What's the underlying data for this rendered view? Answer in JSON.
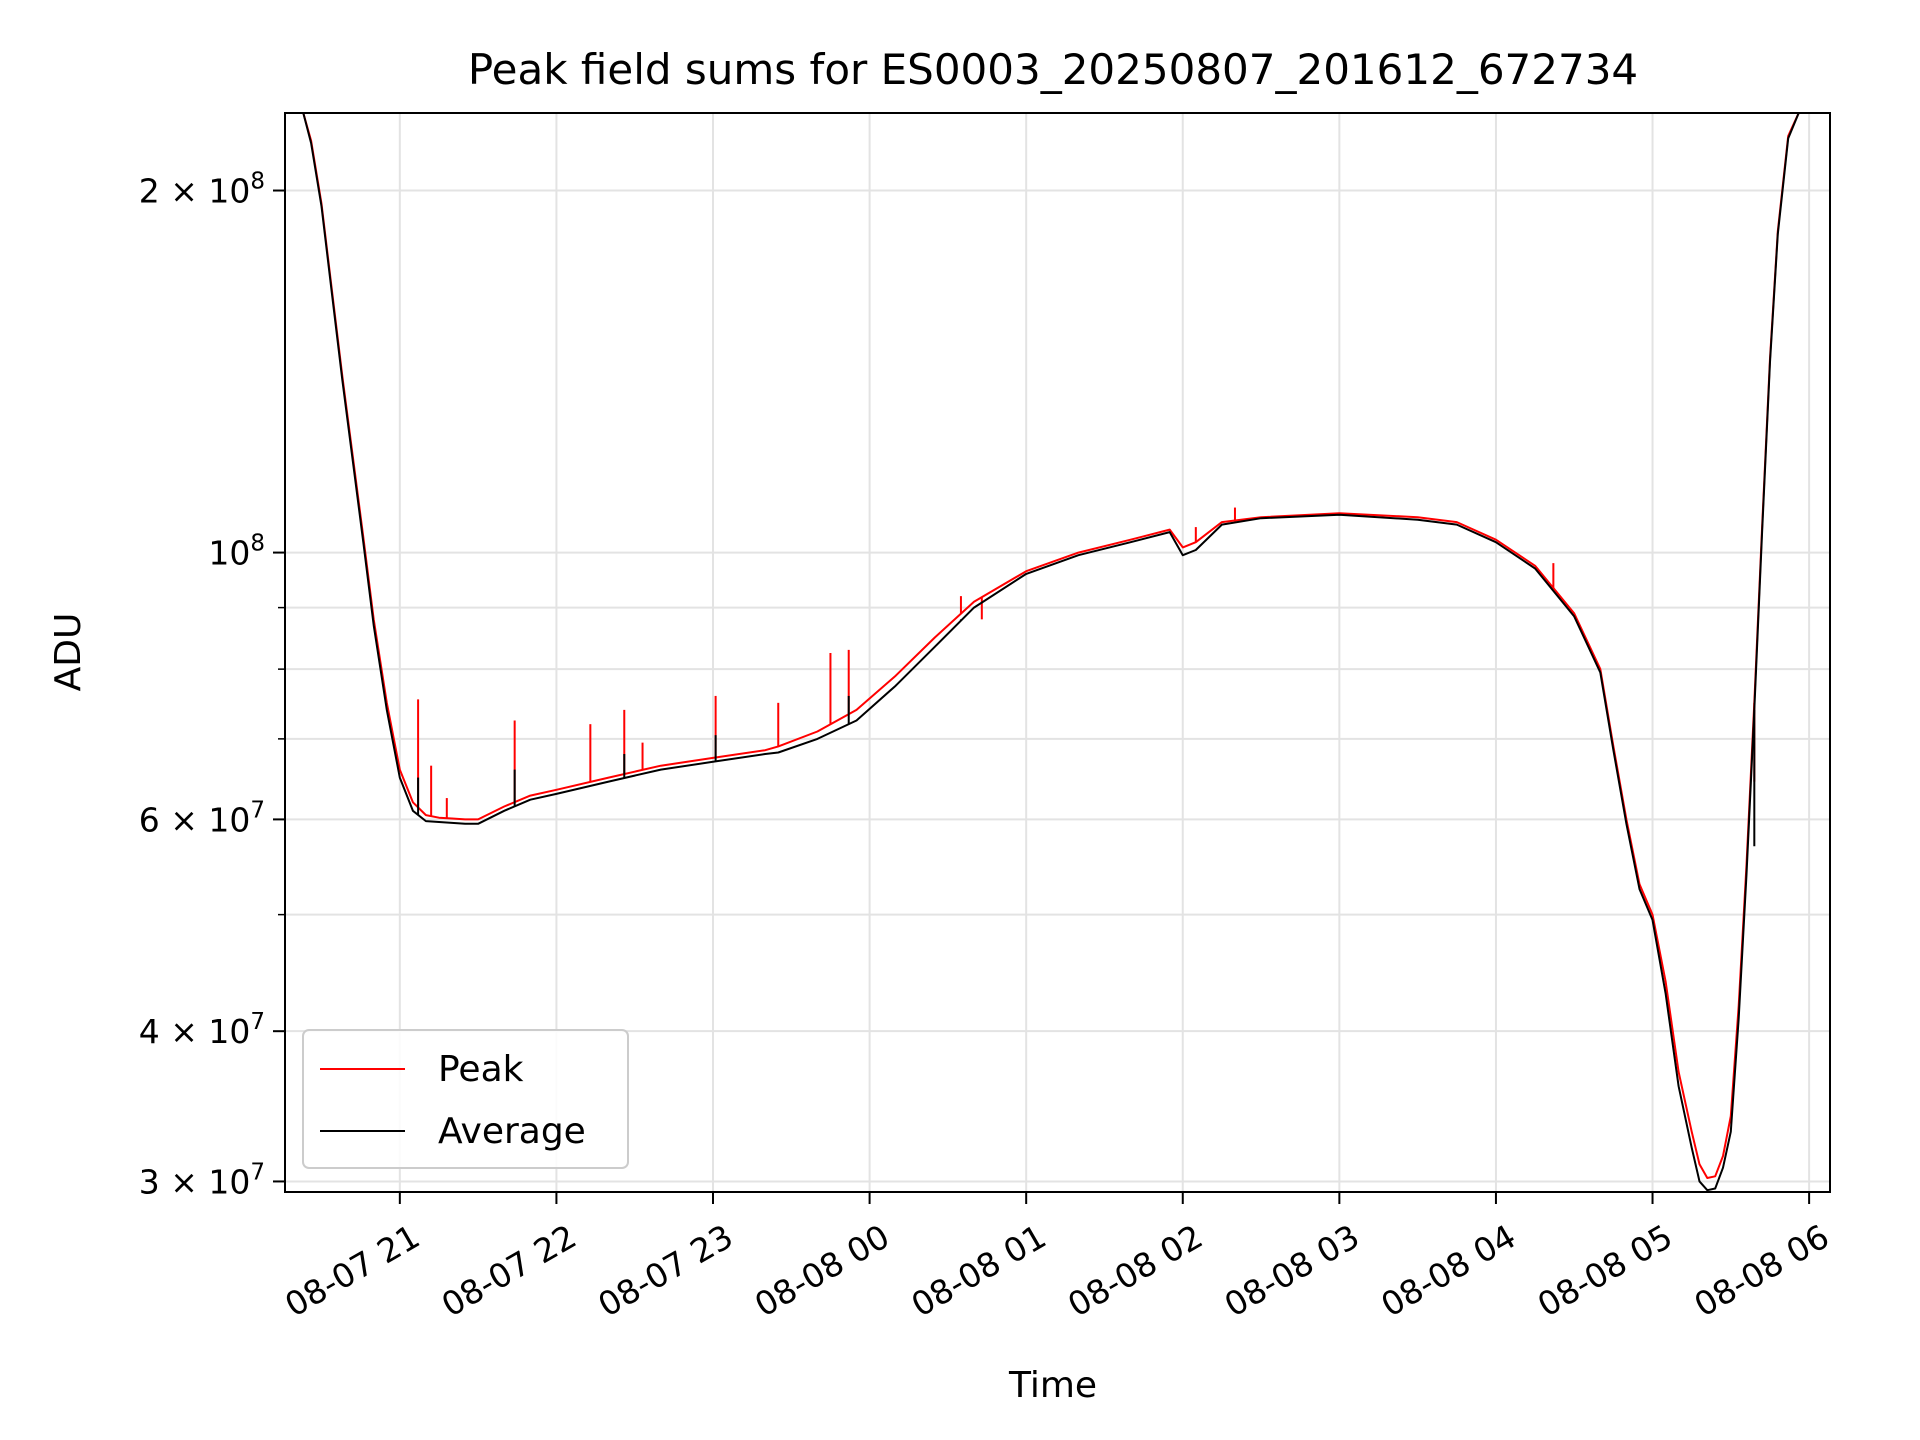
{
  "chart_data": {
    "type": "line",
    "title": "Peak field sums for ES0003_20250807_201612_672734",
    "xlabel": "Time",
    "ylabel": "ADU",
    "yscale": "log",
    "ylim": [
      29400000,
      232000000
    ],
    "xlim": [
      "2025-08-07 20:16",
      "2025-08-08 06:08"
    ],
    "grid": true,
    "legend_position": "lower-left",
    "x_ticks": [
      {
        "label": "08-07 21",
        "t": "2025-08-07 21:00"
      },
      {
        "label": "08-07 22",
        "t": "2025-08-07 22:00"
      },
      {
        "label": "08-07 23",
        "t": "2025-08-07 23:00"
      },
      {
        "label": "08-08 00",
        "t": "2025-08-08 00:00"
      },
      {
        "label": "08-08 01",
        "t": "2025-08-08 01:00"
      },
      {
        "label": "08-08 02",
        "t": "2025-08-08 02:00"
      },
      {
        "label": "08-08 03",
        "t": "2025-08-08 03:00"
      },
      {
        "label": "08-08 04",
        "t": "2025-08-08 04:00"
      },
      {
        "label": "08-08 05",
        "t": "2025-08-08 05:00"
      },
      {
        "label": "08-08 06",
        "t": "2025-08-08 06:00"
      }
    ],
    "y_ticks_major": [
      {
        "value": 30000000,
        "base": "3 × 10",
        "exp": "7"
      },
      {
        "value": 40000000,
        "base": "4 × 10",
        "exp": "7"
      },
      {
        "value": 60000000,
        "base": "6 × 10",
        "exp": "7"
      },
      {
        "value": 100000000,
        "base": "10",
        "exp": "8"
      },
      {
        "value": 200000000,
        "base": "2 × 10",
        "exp": "8"
      }
    ],
    "y_ticks_minor": [
      50000000,
      70000000,
      80000000,
      90000000
    ],
    "series": [
      {
        "name": "Peak",
        "color": "#ff0000",
        "x": [
          "2025-08-07 20:20",
          "2025-08-07 20:23",
          "2025-08-07 20:26",
          "2025-08-07 20:30",
          "2025-08-07 20:34",
          "2025-08-07 20:38",
          "2025-08-07 20:42",
          "2025-08-07 20:46",
          "2025-08-07 20:50",
          "2025-08-07 20:55",
          "2025-08-07 21:00",
          "2025-08-07 21:05",
          "2025-08-07 21:10",
          "2025-08-07 21:15",
          "2025-08-07 21:20",
          "2025-08-07 21:25",
          "2025-08-07 21:30",
          "2025-08-07 21:40",
          "2025-08-07 21:50",
          "2025-08-07 22:00",
          "2025-08-07 22:20",
          "2025-08-07 22:40",
          "2025-08-07 23:00",
          "2025-08-07 23:20",
          "2025-08-07 23:25",
          "2025-08-07 23:40",
          "2025-08-07 23:55",
          "2025-08-08 00:10",
          "2025-08-08 00:25",
          "2025-08-08 00:40",
          "2025-08-08 01:00",
          "2025-08-08 01:20",
          "2025-08-08 01:40",
          "2025-08-08 01:55",
          "2025-08-08 02:00",
          "2025-08-08 02:05",
          "2025-08-08 02:15",
          "2025-08-08 02:30",
          "2025-08-08 03:00",
          "2025-08-08 03:30",
          "2025-08-08 03:45",
          "2025-08-08 04:00",
          "2025-08-08 04:15",
          "2025-08-08 04:30",
          "2025-08-08 04:40",
          "2025-08-08 04:45",
          "2025-08-08 04:50",
          "2025-08-08 04:55",
          "2025-08-08 05:00",
          "2025-08-08 05:05",
          "2025-08-08 05:10",
          "2025-08-08 05:15",
          "2025-08-08 05:18",
          "2025-08-08 05:21",
          "2025-08-08 05:24",
          "2025-08-08 05:27",
          "2025-08-08 05:30",
          "2025-08-08 05:33",
          "2025-08-08 05:36",
          "2025-08-08 05:39",
          "2025-08-08 05:42",
          "2025-08-08 05:45",
          "2025-08-08 05:48",
          "2025-08-08 05:52",
          "2025-08-08 05:56",
          "2025-08-08 05:58"
        ],
        "y": [
          232000000,
          232000000,
          220000000,
          195000000,
          165000000,
          140000000,
          120000000,
          103000000,
          88000000,
          75000000,
          66000000,
          62000000,
          60500000,
          60200000,
          60100000,
          60000000,
          60000000,
          61500000,
          62800000,
          63500000,
          65000000,
          66500000,
          67500000,
          68500000,
          69000000,
          71000000,
          74000000,
          79000000,
          85000000,
          91000000,
          96500000,
          100000000,
          102500000,
          104500000,
          101000000,
          102000000,
          106000000,
          107000000,
          107800000,
          107000000,
          106000000,
          102500000,
          97500000,
          89000000,
          80000000,
          69000000,
          60000000,
          53000000,
          50000000,
          44000000,
          37000000,
          33000000,
          31000000,
          30200000,
          30300000,
          31500000,
          34000000,
          42000000,
          55000000,
          75000000,
          105000000,
          145000000,
          185000000,
          222000000,
          232000000,
          232000000
        ]
      },
      {
        "name": "Average",
        "color": "#000000",
        "x": [
          "2025-08-07 20:20",
          "2025-08-07 20:23",
          "2025-08-07 20:26",
          "2025-08-07 20:30",
          "2025-08-07 20:34",
          "2025-08-07 20:38",
          "2025-08-07 20:42",
          "2025-08-07 20:46",
          "2025-08-07 20:50",
          "2025-08-07 20:55",
          "2025-08-07 21:00",
          "2025-08-07 21:05",
          "2025-08-07 21:10",
          "2025-08-07 21:15",
          "2025-08-07 21:20",
          "2025-08-07 21:25",
          "2025-08-07 21:30",
          "2025-08-07 21:40",
          "2025-08-07 21:50",
          "2025-08-07 22:00",
          "2025-08-07 22:20",
          "2025-08-07 22:40",
          "2025-08-07 23:00",
          "2025-08-07 23:20",
          "2025-08-07 23:25",
          "2025-08-07 23:40",
          "2025-08-07 23:55",
          "2025-08-08 00:10",
          "2025-08-08 00:25",
          "2025-08-08 00:40",
          "2025-08-08 01:00",
          "2025-08-08 01:20",
          "2025-08-08 01:40",
          "2025-08-08 01:55",
          "2025-08-08 02:00",
          "2025-08-08 02:05",
          "2025-08-08 02:15",
          "2025-08-08 02:30",
          "2025-08-08 03:00",
          "2025-08-08 03:30",
          "2025-08-08 03:45",
          "2025-08-08 04:00",
          "2025-08-08 04:15",
          "2025-08-08 04:30",
          "2025-08-08 04:40",
          "2025-08-08 04:45",
          "2025-08-08 04:50",
          "2025-08-08 04:55",
          "2025-08-08 05:00",
          "2025-08-08 05:05",
          "2025-08-08 05:10",
          "2025-08-08 05:15",
          "2025-08-08 05:18",
          "2025-08-08 05:21",
          "2025-08-08 05:24",
          "2025-08-08 05:27",
          "2025-08-08 05:30",
          "2025-08-08 05:33",
          "2025-08-08 05:36",
          "2025-08-08 05:39",
          "2025-08-08 05:42",
          "2025-08-08 05:45",
          "2025-08-08 05:48",
          "2025-08-08 05:52",
          "2025-08-08 05:56",
          "2025-08-08 05:58"
        ],
        "y": [
          232000000,
          232000000,
          219000000,
          194000000,
          164000000,
          139000000,
          119000000,
          102000000,
          87000000,
          74000000,
          65000000,
          61000000,
          59800000,
          59700000,
          59600000,
          59500000,
          59500000,
          61000000,
          62300000,
          63000000,
          64500000,
          66000000,
          67000000,
          68000000,
          68200000,
          70000000,
          72500000,
          77500000,
          83500000,
          90000000,
          96000000,
          99500000,
          102000000,
          104000000,
          99500000,
          100500000,
          105500000,
          106800000,
          107500000,
          106500000,
          105500000,
          102000000,
          97000000,
          88500000,
          79500000,
          68500000,
          59500000,
          52500000,
          49500000,
          43000000,
          36000000,
          32000000,
          30000000,
          29500000,
          29600000,
          30800000,
          33000000,
          41000000,
          54000000,
          74000000,
          104000000,
          144000000,
          184000000,
          221000000,
          232000000,
          232000000
        ]
      }
    ],
    "spikes": {
      "Peak": [
        {
          "t": "2025-08-07 21:07",
          "y": 75500000
        },
        {
          "t": "2025-08-07 21:12",
          "y": 66500000
        },
        {
          "t": "2025-08-07 21:18",
          "y": 62500000
        },
        {
          "t": "2025-08-07 21:44",
          "y": 72500000
        },
        {
          "t": "2025-08-07 22:13",
          "y": 72000000
        },
        {
          "t": "2025-08-07 22:26",
          "y": 74000000
        },
        {
          "t": "2025-08-07 22:33",
          "y": 69500000
        },
        {
          "t": "2025-08-07 23:01",
          "y": 76000000
        },
        {
          "t": "2025-08-07 23:25",
          "y": 75000000
        },
        {
          "t": "2025-08-07 23:45",
          "y": 82500000
        },
        {
          "t": "2025-08-07 23:52",
          "y": 83000000
        },
        {
          "t": "2025-08-08 00:35",
          "y": 92000000
        },
        {
          "t": "2025-08-08 00:43",
          "y": 88000000
        },
        {
          "t": "2025-08-08 02:05",
          "y": 105000000
        },
        {
          "t": "2025-08-08 02:10",
          "y": 104000000
        },
        {
          "t": "2025-08-08 02:20",
          "y": 109000000
        },
        {
          "t": "2025-08-08 04:22",
          "y": 98000000
        },
        {
          "t": "2025-08-08 05:39",
          "y": 64500000
        }
      ],
      "Average": [
        {
          "t": "2025-08-07 21:07",
          "y": 65000000
        },
        {
          "t": "2025-08-07 21:44",
          "y": 66000000
        },
        {
          "t": "2025-08-07 22:26",
          "y": 68000000
        },
        {
          "t": "2025-08-07 23:01",
          "y": 70500000
        },
        {
          "t": "2025-08-07 23:52",
          "y": 76000000
        },
        {
          "t": "2025-08-08 00:35",
          "y": 88000000
        },
        {
          "t": "2025-08-08 05:39",
          "y": 57000000
        }
      ]
    },
    "legend": [
      {
        "label": "Peak",
        "color": "#ff0000"
      },
      {
        "label": "Average",
        "color": "#000000"
      }
    ]
  }
}
